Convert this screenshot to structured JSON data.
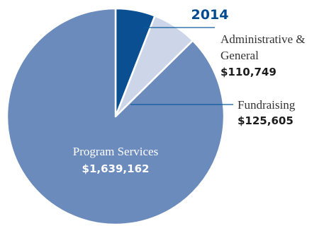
{
  "chart_data": {
    "type": "pie",
    "title": "2014",
    "slices": [
      {
        "label": "Program Services",
        "value": 1639162,
        "value_label": "$1,639,162",
        "color": "#6b8bbd"
      },
      {
        "label": "Administrative & General",
        "value": 110749,
        "value_label": "$110,749",
        "color": "#0b4f93"
      },
      {
        "label": "Fundraising",
        "value": 125605,
        "value_label": "$125,605",
        "color": "#cdd6e9"
      }
    ],
    "label_lines": {
      "admin": [
        "Administrative &",
        "General"
      ],
      "fundraising": [
        "Fundraising"
      ],
      "program": [
        "Program Services"
      ]
    },
    "legend": "none",
    "grid": false
  }
}
